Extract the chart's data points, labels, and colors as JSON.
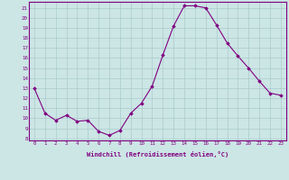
{
  "x": [
    0,
    1,
    2,
    3,
    4,
    5,
    6,
    7,
    8,
    9,
    10,
    11,
    12,
    13,
    14,
    15,
    16,
    17,
    18,
    19,
    20,
    21,
    22,
    23
  ],
  "y": [
    13,
    10.5,
    9.8,
    10.3,
    9.7,
    9.8,
    8.7,
    8.3,
    8.8,
    10.5,
    11.5,
    13.2,
    16.3,
    19.2,
    21.2,
    21.2,
    21.0,
    19.3,
    17.5,
    16.2,
    15.0,
    13.7,
    12.5,
    12.3
  ],
  "ylim_min": 7.8,
  "ylim_max": 21.6,
  "yticks": [
    8,
    9,
    10,
    11,
    12,
    13,
    14,
    15,
    16,
    17,
    18,
    19,
    20,
    21
  ],
  "xlabel": "Windchill (Refroidissement éolien,°C)",
  "line_color": "#800080",
  "marker": "D",
  "bg_color": "#cce5e5",
  "grid_color": "#aacccc",
  "font_color": "#800080",
  "marker_size": 1.8,
  "line_width": 0.8,
  "tick_fontsize": 4.2,
  "xlabel_fontsize": 5.0
}
